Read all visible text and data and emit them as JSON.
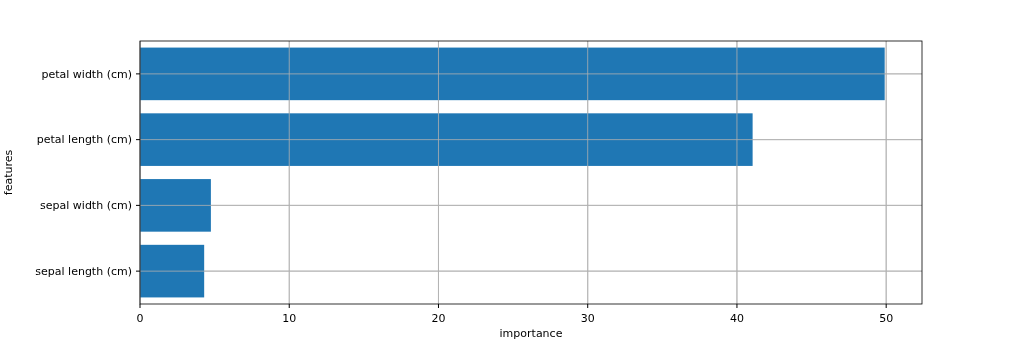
{
  "chart_data": {
    "type": "bar",
    "orientation": "horizontal",
    "xlabel": "importance",
    "ylabel": "features",
    "categories": [
      "petal width (cm)",
      "petal length (cm)",
      "sepal width (cm)",
      "sepal length (cm)"
    ],
    "values": [
      49.9,
      41.05,
      4.75,
      4.3
    ],
    "color": "#1f77b4",
    "xlim": [
      0,
      52.4
    ],
    "xticks": [
      0,
      10,
      20,
      30,
      40,
      50
    ],
    "grid": true
  }
}
